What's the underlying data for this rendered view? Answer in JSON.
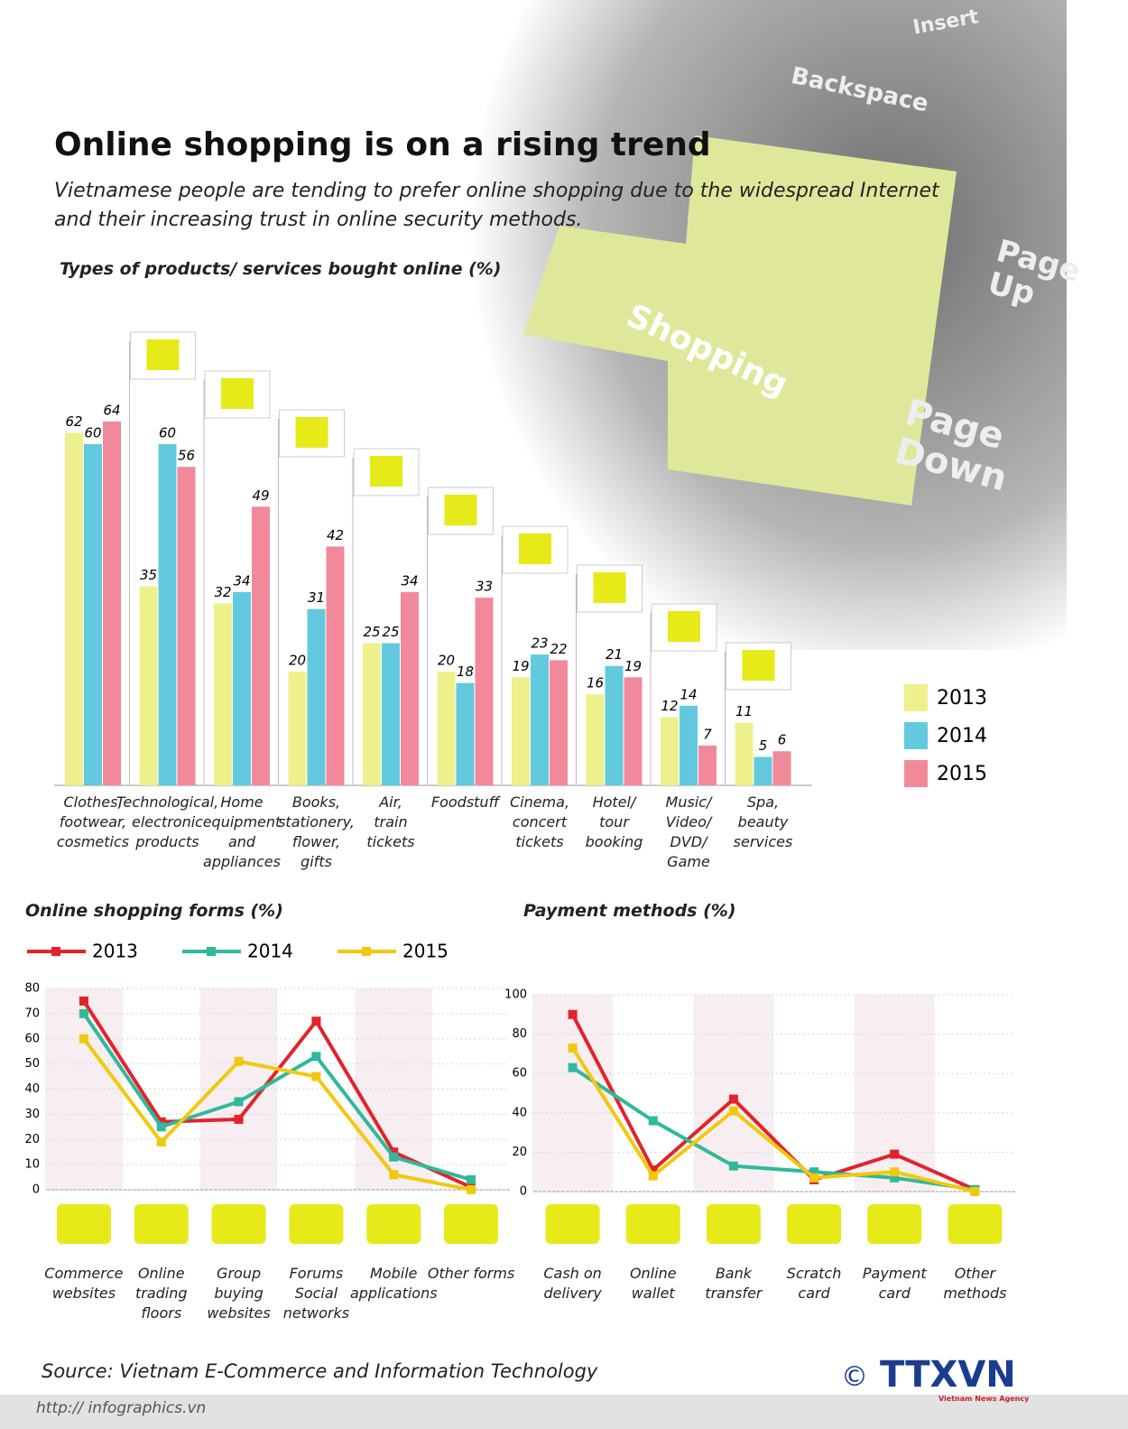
{
  "title": "Online shopping is on a rising trend",
  "subtitle": "Vietnamese people are tending to prefer online shopping due to the widespread Internet\nand their increasing trust in online security methods.",
  "keyboard_keys": [
    "Insert",
    "Backspace",
    "Shopping",
    "Page\nUp",
    "Page\nDown"
  ],
  "chart_data": [
    {
      "type": "bar",
      "title": "Types of products/ services bought online (%)",
      "categories": [
        "Clothes,\nfootwear,\ncosmetics",
        "Technological,\nelectronic\nproducts",
        "Home\nequipment\nand\nappliances",
        "Books,\nstationery,\nflower,\ngifts",
        "Air,\ntrain\ntickets",
        "Foodstuff",
        "Cinema,\nconcert\ntickets",
        "Hotel/\ntour\nbooking",
        "Music/\nVideo/\nDVD/\nGame",
        "Spa,\nbeauty\nservices"
      ],
      "series": [
        {
          "name": "2013",
          "color": "#eef08c",
          "values": [
            62,
            35,
            32,
            20,
            25,
            20,
            19,
            16,
            12,
            11
          ]
        },
        {
          "name": "2014",
          "color": "#62c9de",
          "values": [
            60,
            60,
            34,
            31,
            25,
            18,
            23,
            21,
            14,
            5
          ]
        },
        {
          "name": "2015",
          "color": "#f2899a",
          "values": [
            64,
            56,
            49,
            42,
            34,
            33,
            22,
            19,
            7,
            6
          ]
        }
      ]
    },
    {
      "type": "line",
      "title": "Online shopping forms (%)",
      "categories": [
        "Commerce\nwebsites",
        "Online\ntrading\nfloors",
        "Group\nbuying\nwebsites",
        "Forums\nSocial\nnetworks",
        "Mobile\napplications",
        "Other forms"
      ],
      "ylim": [
        0,
        80
      ],
      "yticks": [
        0,
        10,
        20,
        30,
        40,
        50,
        60,
        70,
        80
      ],
      "series": [
        {
          "name": "2013",
          "color": "#e3222b",
          "values": [
            75,
            27,
            28,
            67,
            15,
            1
          ]
        },
        {
          "name": "2014",
          "color": "#2fb99a",
          "values": [
            70,
            25,
            35,
            53,
            13,
            4
          ]
        },
        {
          "name": "2015",
          "color": "#f2c80f",
          "values": [
            60,
            19,
            51,
            45,
            6,
            0
          ]
        }
      ]
    },
    {
      "type": "line",
      "title": "Payment methods (%)",
      "categories": [
        "Cash on\ndelivery",
        "Online\nwallet",
        "Bank transfer",
        "Scratch\ncard",
        "Payment\ncard",
        "Other\nmethods"
      ],
      "ylim": [
        0,
        100
      ],
      "yticks": [
        0,
        20,
        40,
        60,
        80,
        100
      ],
      "series": [
        {
          "color": "#e3222b",
          "values": [
            90,
            11,
            47,
            6,
            19,
            1
          ]
        },
        {
          "color": "#2fb99a",
          "values": [
            63,
            36,
            13,
            10,
            7,
            1
          ]
        },
        {
          "color": "#f2c80f",
          "values": [
            73,
            8,
            41,
            7,
            10,
            0
          ]
        }
      ]
    }
  ],
  "source": "Source: Vietnam E-Commerce and Information Technology",
  "url": "http:// infographics.vn",
  "logo": {
    "symbol": "©",
    "name": "TTXVN",
    "tagline": "Vietnam News Agency"
  }
}
